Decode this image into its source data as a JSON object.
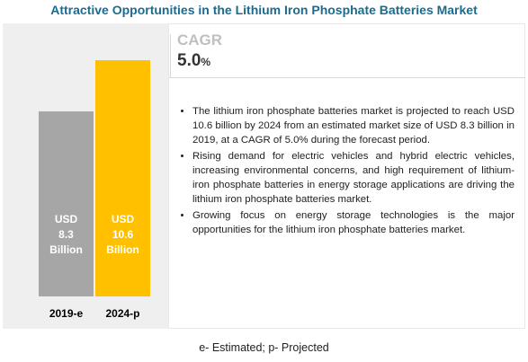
{
  "chart_data": {
    "type": "bar",
    "title": "Attractive Opportunities in the Lithium Iron Phosphate Batteries Market",
    "categories": [
      "2019-e",
      "2024-p"
    ],
    "series": [
      {
        "colors": [
          "#a6a6a6",
          "#ffc000"
        ],
        "values": [
          8.3,
          10.6
        ],
        "value_labels": [
          "USD\n8.3\nBillion",
          "USD\n10.6\nBillion"
        ]
      }
    ],
    "cagr_label": "CAGR",
    "cagr_value": "5.0",
    "cagr_unit": "%",
    "bullets": [
      "The lithium iron phosphate batteries market is projected to reach USD 10.6 billion by 2024 from an estimated market size of USD 8.3 billion in 2019, at a CAGR of 5.0% during the forecast period.",
      "Rising demand for electric vehicles and hybrid electric vehicles, increasing environmental concerns, and high requirement of lithium-iron phosphate batteries in energy storage applications are driving the lithium iron phosphate batteries market.",
      "Growing  focus on energy storage technologies is the major opportunities for the lithium iron phosphate batteries market."
    ],
    "footnote": "e- Estimated; p- Projected"
  }
}
